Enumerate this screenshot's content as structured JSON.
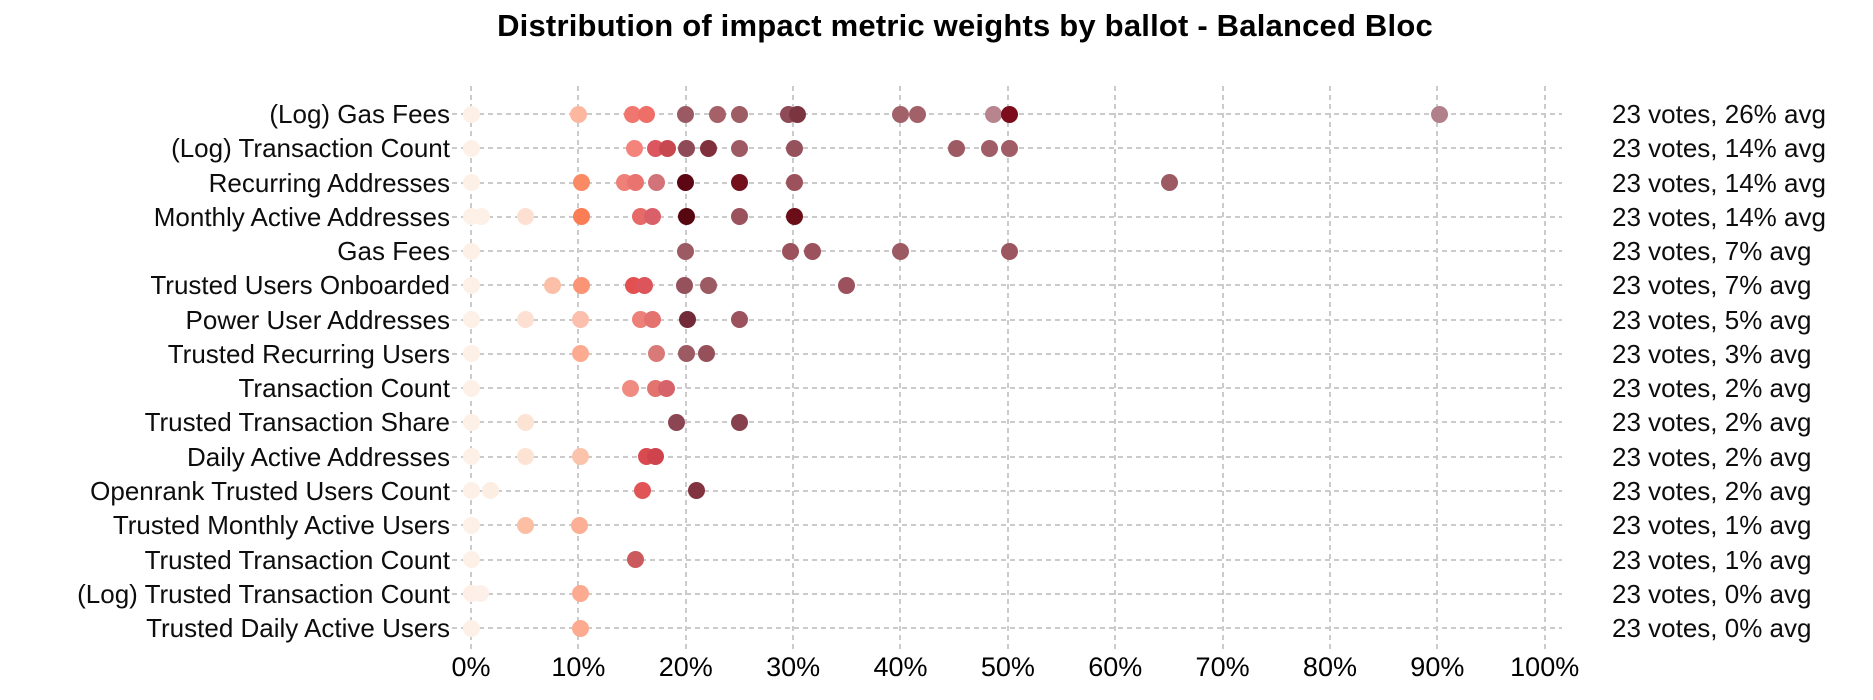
{
  "title": "Distribution of impact metric weights by ballot - Balanced Bloc",
  "chart_data": {
    "type": "scatter",
    "title": "Distribution of impact metric weights by ballot - Balanced Bloc",
    "xlabel": "",
    "ylabel": "",
    "xlim": [
      0,
      100
    ],
    "x_unit": "%",
    "grid": true,
    "gridline_color": "#cbcbcb",
    "x_ticks": [
      "0%",
      "10%",
      "20%",
      "30%",
      "40%",
      "50%",
      "60%",
      "70%",
      "80%",
      "90%",
      "100%"
    ],
    "point_color_low": "#fdf0e7",
    "point_color_high": "#67000d",
    "rows": [
      {
        "label": "(Log) Gas Fees",
        "annotation": "23 votes, 26% avg",
        "votes": 23,
        "avg": "26%",
        "points": [
          [
            0,
            "#fdf0e7"
          ],
          [
            10,
            "#fcb79e"
          ],
          [
            15,
            "#f0776f"
          ],
          [
            16.3,
            "#ee6e68"
          ],
          [
            20,
            "#9b5a63"
          ],
          [
            23,
            "#a66168"
          ],
          [
            25,
            "#9e5c64"
          ],
          [
            29.6,
            "#8f4a57"
          ],
          [
            30.4,
            "#7b3541"
          ],
          [
            40,
            "#a26169"
          ],
          [
            41.6,
            "#a26169"
          ],
          [
            48.7,
            "#b8848d"
          ],
          [
            50.2,
            "#7c0c1c"
          ],
          [
            90.2,
            "#b2808a"
          ]
        ]
      },
      {
        "label": "(Log) Transaction Count",
        "annotation": "23 votes, 14% avg",
        "votes": 23,
        "avg": "14%",
        "points": [
          [
            0,
            "#fdf0e7"
          ],
          [
            15.2,
            "#f4837b"
          ],
          [
            17.2,
            "#db565e"
          ],
          [
            18.3,
            "#c84850"
          ],
          [
            20.1,
            "#8f4a57"
          ],
          [
            22.1,
            "#80303d"
          ],
          [
            25,
            "#9d5a63"
          ],
          [
            30.1,
            "#96525c"
          ],
          [
            45.2,
            "#9d5a63"
          ],
          [
            48.3,
            "#a05d66"
          ],
          [
            50.2,
            "#a05d66"
          ]
        ]
      },
      {
        "label": "Recurring Addresses",
        "annotation": "23 votes, 14% avg",
        "votes": 23,
        "avg": "14%",
        "points": [
          [
            0,
            "#fdf0e7"
          ],
          [
            10.3,
            "#fa8a64"
          ],
          [
            14.3,
            "#ef8077"
          ],
          [
            15.3,
            "#e8736f"
          ],
          [
            17.3,
            "#d2737a"
          ],
          [
            20,
            "#5c0713"
          ],
          [
            25,
            "#73101c"
          ],
          [
            30.1,
            "#9c525c"
          ],
          [
            65.1,
            "#9d5a63"
          ]
        ]
      },
      {
        "label": "Monthly Active Addresses",
        "annotation": "23 votes, 14% avg",
        "votes": 23,
        "avg": "14%",
        "points": [
          [
            0,
            "#fdf0e7"
          ],
          [
            1,
            "#fdf0e7"
          ],
          [
            5.1,
            "#fde0d2"
          ],
          [
            10.3,
            "#fa7d55"
          ],
          [
            15.8,
            "#e76a68"
          ],
          [
            16.9,
            "#d95f68"
          ],
          [
            20.1,
            "#570710"
          ],
          [
            25,
            "#9c525c"
          ],
          [
            30.1,
            "#6b0e18"
          ]
        ]
      },
      {
        "label": "Gas Fees",
        "annotation": "23 votes, 7% avg",
        "votes": 23,
        "avg": "7%",
        "points": [
          [
            0,
            "#fdf0e7"
          ],
          [
            20,
            "#9c5a62"
          ],
          [
            29.8,
            "#9c525c"
          ],
          [
            31.8,
            "#9c525c"
          ],
          [
            40,
            "#9c5a62"
          ],
          [
            50.2,
            "#9c5660"
          ]
        ]
      },
      {
        "label": "Trusted Users Onboarded",
        "annotation": "23 votes, 7% avg",
        "votes": 23,
        "avg": "7%",
        "points": [
          [
            0,
            "#fdf0e7"
          ],
          [
            7.6,
            "#fcc0a8"
          ],
          [
            10.3,
            "#fa9474"
          ],
          [
            15.1,
            "#e4504f"
          ],
          [
            16.2,
            "#db555b"
          ],
          [
            19.9,
            "#96525c"
          ],
          [
            22.1,
            "#9c5a62"
          ],
          [
            35,
            "#9c525c"
          ]
        ]
      },
      {
        "label": "Power User Addresses",
        "annotation": "23 votes, 5% avg",
        "votes": 23,
        "avg": "5%",
        "points": [
          [
            0,
            "#fdf0e7"
          ],
          [
            5.1,
            "#fde0d2"
          ],
          [
            10.2,
            "#fcbfae"
          ],
          [
            15.8,
            "#ed8078"
          ],
          [
            16.9,
            "#e4726f"
          ],
          [
            20.2,
            "#732a38"
          ],
          [
            25,
            "#9c525c"
          ]
        ]
      },
      {
        "label": "Trusted Recurring Users",
        "annotation": "23 votes, 3% avg",
        "votes": 23,
        "avg": "3%",
        "points": [
          [
            0,
            "#fdf0e7"
          ],
          [
            10.2,
            "#fcab90"
          ],
          [
            17.3,
            "#d97a79"
          ],
          [
            20.1,
            "#9c5a62"
          ],
          [
            21.9,
            "#95505a"
          ]
        ]
      },
      {
        "label": "Transaction Count",
        "annotation": "23 votes, 2% avg",
        "votes": 23,
        "avg": "2%",
        "points": [
          [
            0,
            "#fdf0e7"
          ],
          [
            14.9,
            "#f08b81"
          ],
          [
            17.2,
            "#e2736f"
          ],
          [
            18.2,
            "#d6636a"
          ]
        ]
      },
      {
        "label": "Trusted Transaction Share",
        "annotation": "23 votes, 2% avg",
        "votes": 23,
        "avg": "2%",
        "points": [
          [
            0,
            "#fdf0e7"
          ],
          [
            5.1,
            "#fde3d4"
          ],
          [
            19.1,
            "#8c4552"
          ],
          [
            25,
            "#87404d"
          ]
        ]
      },
      {
        "label": "Daily Active Addresses",
        "annotation": "23 votes, 2% avg",
        "votes": 23,
        "avg": "2%",
        "points": [
          [
            0,
            "#fdf0e7"
          ],
          [
            5.1,
            "#fde3d4"
          ],
          [
            10.2,
            "#fcc3ac"
          ],
          [
            16.3,
            "#d84a4f"
          ],
          [
            17.2,
            "#cf444c"
          ]
        ]
      },
      {
        "label": "Openrank Trusted Users Count",
        "annotation": "23 votes, 2% avg",
        "votes": 23,
        "avg": "2%",
        "points": [
          [
            0,
            "#fdf0e7"
          ],
          [
            1.8,
            "#fdeee4"
          ],
          [
            16,
            "#e05455"
          ],
          [
            21,
            "#81333f"
          ]
        ]
      },
      {
        "label": "Trusted Monthly Active Users",
        "annotation": "23 votes, 1% avg",
        "votes": 23,
        "avg": "1%",
        "points": [
          [
            0,
            "#fdf0e7"
          ],
          [
            5.1,
            "#fcbfa4"
          ],
          [
            10.1,
            "#fcaf94"
          ]
        ]
      },
      {
        "label": "Trusted Transaction Count",
        "annotation": "23 votes, 1% avg",
        "votes": 23,
        "avg": "1%",
        "points": [
          [
            0,
            "#fdf0e7"
          ],
          [
            15.3,
            "#cb5a5e"
          ]
        ]
      },
      {
        "label": "(Log) Trusted Transaction Count",
        "annotation": "23 votes, 0% avg",
        "votes": 23,
        "avg": "0%",
        "points": [
          [
            0,
            "#fdeee6"
          ],
          [
            0.9,
            "#fdf0e9"
          ],
          [
            10.2,
            "#fcab90"
          ]
        ]
      },
      {
        "label": "Trusted Daily Active Users",
        "annotation": "23 votes, 0% avg",
        "votes": 23,
        "avg": "0%",
        "points": [
          [
            0,
            "#fdf0e7"
          ],
          [
            10.2,
            "#fcab90"
          ]
        ]
      }
    ]
  }
}
